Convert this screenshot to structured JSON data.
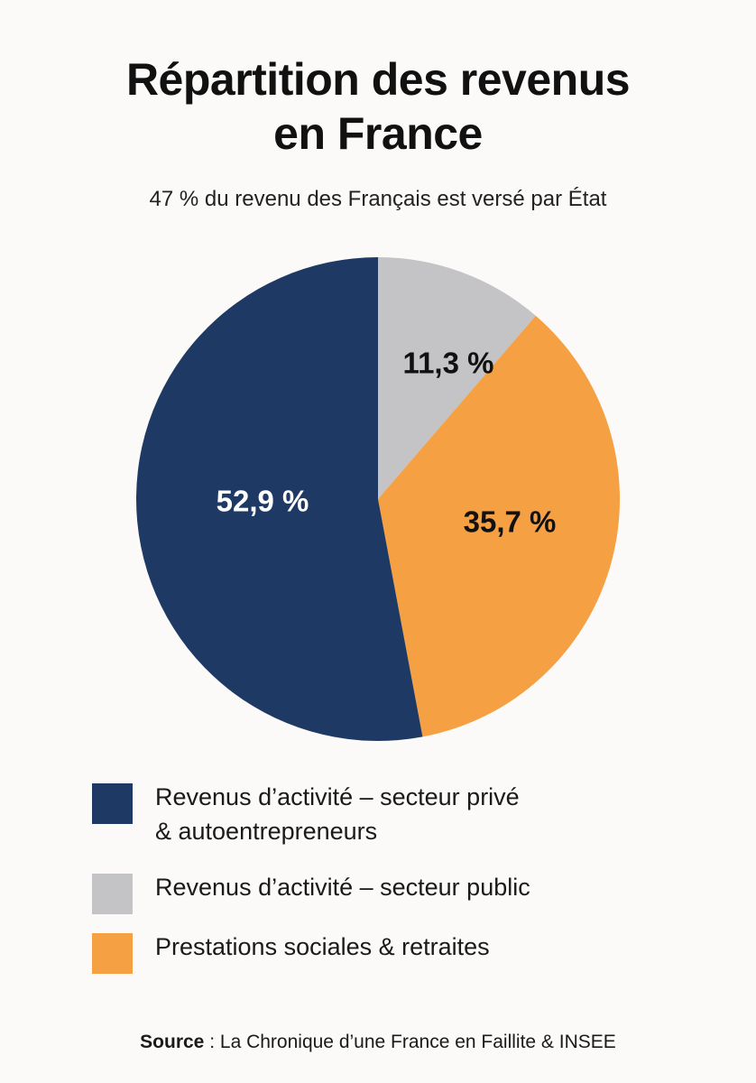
{
  "title_line1": "Répartition des revenus",
  "title_line2": "en France",
  "subtitle": "47 % du revenu des Français est versé par État",
  "colors": {
    "prive": "#1e3a64",
    "public": "#c4c4c6",
    "prestations": "#f5a042",
    "label_dark": "#111111",
    "label_light": "#ffffff"
  },
  "chart_data": {
    "type": "pie",
    "title": "Répartition des revenus en France",
    "subtitle": "47 % du revenu des Français est versé par État",
    "start": "top, clockwise",
    "slices": [
      {
        "name": "Revenus d’activité – secteur public",
        "value": 11.3,
        "label": "11,3 %",
        "color_key": "public"
      },
      {
        "name": "Prestations sociales & retraites",
        "value": 35.7,
        "label": "35,7 %",
        "color_key": "prestations"
      },
      {
        "name": "Revenus d’activité – secteur privé & autoentrepreneurs",
        "value": 52.9,
        "label": "52,9 %",
        "color_key": "prive"
      }
    ]
  },
  "legend": {
    "items": [
      {
        "line1": "Revenus d’activité – secteur privé",
        "line2": "& autoentrepreneurs",
        "color_key": "prive"
      },
      {
        "line1": "Revenus d’activité – secteur public",
        "line2": "",
        "color_key": "public"
      },
      {
        "line1": "Prestations sociales & retraites",
        "line2": "",
        "color_key": "prestations"
      }
    ]
  },
  "source": {
    "label": "Source",
    "separator": " : ",
    "text": "La Chronique d’une France en Faillite & INSEE"
  }
}
